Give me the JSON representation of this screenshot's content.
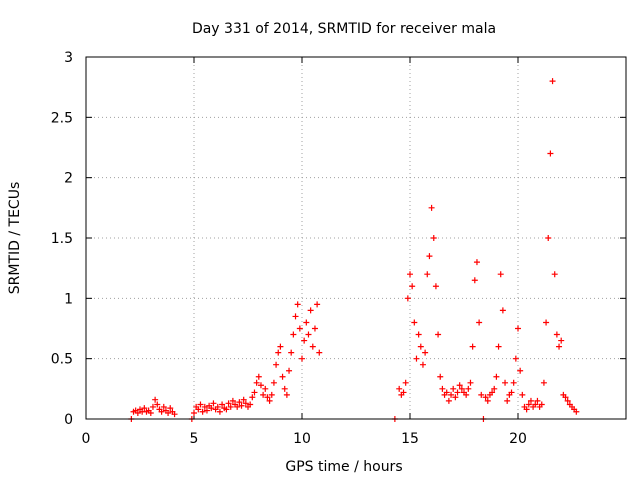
{
  "chart_data": {
    "type": "scatter",
    "title": "Day 331 of 2014, SRMTID for receiver mala",
    "xlabel": "GPS time / hours",
    "ylabel": "SRMTID / TECUs",
    "xlim": [
      0,
      25
    ],
    "ylim": [
      0,
      3
    ],
    "xticks": [
      0,
      5,
      10,
      15,
      20
    ],
    "yticks": [
      0,
      0.5,
      1,
      1.5,
      2,
      2.5,
      3
    ],
    "xtick_labels": [
      "0",
      "5",
      "10",
      "15",
      "20"
    ],
    "ytick_labels": [
      "0",
      "0.5",
      "1",
      "1.5",
      "2",
      "2.5",
      "3"
    ],
    "grid": true,
    "marker": "+",
    "color": "#ff0000",
    "series": [
      {
        "name": "mala",
        "segments": [
          {
            "x": [
              2.1,
              2.2,
              2.3,
              2.4,
              2.5,
              2.6,
              2.7,
              2.8,
              2.9,
              3.0,
              3.1,
              3.2,
              3.3,
              3.4,
              3.5,
              3.6,
              3.7,
              3.8,
              3.9,
              4.0,
              4.1
            ],
            "y": [
              0.0,
              0.06,
              0.07,
              0.05,
              0.08,
              0.06,
              0.09,
              0.06,
              0.07,
              0.05,
              0.1,
              0.16,
              0.12,
              0.08,
              0.06,
              0.1,
              0.07,
              0.05,
              0.09,
              0.06,
              0.04
            ]
          },
          {
            "x": [
              4.9,
              5.0,
              5.1,
              5.2,
              5.3,
              5.4,
              5.5,
              5.6,
              5.7,
              5.8,
              5.9,
              6.0,
              6.1,
              6.2,
              6.3,
              6.4,
              6.5,
              6.6,
              6.7,
              6.8,
              6.9,
              7.0,
              7.1,
              7.2,
              7.3,
              7.4,
              7.5,
              7.6,
              7.7,
              7.8,
              7.9,
              8.0,
              8.1,
              8.2,
              8.3,
              8.4,
              8.5,
              8.6,
              8.7,
              8.8,
              8.9,
              9.0,
              9.1,
              9.2,
              9.3,
              9.4,
              9.5,
              9.6,
              9.7,
              9.8,
              9.9,
              10.0,
              10.1,
              10.2,
              10.3,
              10.4,
              10.5,
              10.6,
              10.7,
              10.8
            ],
            "y": [
              0.0,
              0.05,
              0.1,
              0.08,
              0.12,
              0.06,
              0.1,
              0.07,
              0.11,
              0.09,
              0.13,
              0.08,
              0.1,
              0.06,
              0.12,
              0.09,
              0.08,
              0.13,
              0.1,
              0.15,
              0.12,
              0.1,
              0.14,
              0.11,
              0.16,
              0.13,
              0.1,
              0.12,
              0.18,
              0.22,
              0.3,
              0.35,
              0.28,
              0.2,
              0.25,
              0.18,
              0.15,
              0.2,
              0.3,
              0.45,
              0.55,
              0.6,
              0.35,
              0.25,
              0.2,
              0.4,
              0.55,
              0.7,
              0.85,
              0.95,
              0.75,
              0.5,
              0.65,
              0.8,
              0.7,
              0.9,
              0.6,
              0.75,
              0.95,
              0.55
            ]
          },
          {
            "x": [
              14.3,
              14.5,
              14.6,
              14.7,
              14.8,
              14.9,
              15.0,
              15.1,
              15.2,
              15.3,
              15.4,
              15.5,
              15.6,
              15.7,
              15.8,
              15.9,
              16.0,
              16.1,
              16.2,
              16.3,
              16.4,
              16.5,
              16.6,
              16.7,
              16.8,
              16.9,
              17.0,
              17.1,
              17.2,
              17.3,
              17.4,
              17.5,
              17.6,
              17.7,
              17.8,
              17.9,
              18.0,
              18.1,
              18.2,
              18.3,
              18.4,
              18.5,
              18.6,
              18.7,
              18.8,
              18.9,
              19.0,
              19.1,
              19.2,
              19.3,
              19.4,
              19.5,
              19.6,
              19.7,
              19.8,
              19.9,
              20.0,
              20.1,
              20.2,
              20.3,
              20.4,
              20.5,
              20.6,
              20.7,
              20.8,
              20.9,
              21.0,
              21.1,
              21.2,
              21.3,
              21.4,
              21.5,
              21.6,
              21.7,
              21.8,
              21.9,
              22.0,
              22.1,
              22.2,
              22.3,
              22.4,
              22.5,
              22.6,
              22.7
            ],
            "y": [
              0.0,
              0.25,
              0.2,
              0.22,
              0.3,
              1.0,
              1.2,
              1.1,
              0.8,
              0.5,
              0.7,
              0.6,
              0.45,
              0.55,
              1.2,
              1.35,
              1.75,
              1.5,
              1.1,
              0.7,
              0.35,
              0.25,
              0.2,
              0.22,
              0.15,
              0.2,
              0.25,
              0.18,
              0.22,
              0.28,
              0.25,
              0.22,
              0.2,
              0.25,
              0.3,
              0.6,
              1.15,
              1.3,
              0.8,
              0.2,
              0.0,
              0.18,
              0.15,
              0.2,
              0.22,
              0.25,
              0.35,
              0.6,
              1.2,
              0.9,
              0.3,
              0.15,
              0.2,
              0.22,
              0.3,
              0.5,
              0.75,
              0.4,
              0.2,
              0.1,
              0.08,
              0.12,
              0.15,
              0.1,
              0.12,
              0.15,
              0.1,
              0.12,
              0.3,
              0.8,
              1.5,
              2.2,
              2.8,
              1.2,
              0.7,
              0.6,
              0.65,
              0.2,
              0.18,
              0.15,
              0.12,
              0.1,
              0.08,
              0.06
            ]
          }
        ]
      }
    ]
  }
}
